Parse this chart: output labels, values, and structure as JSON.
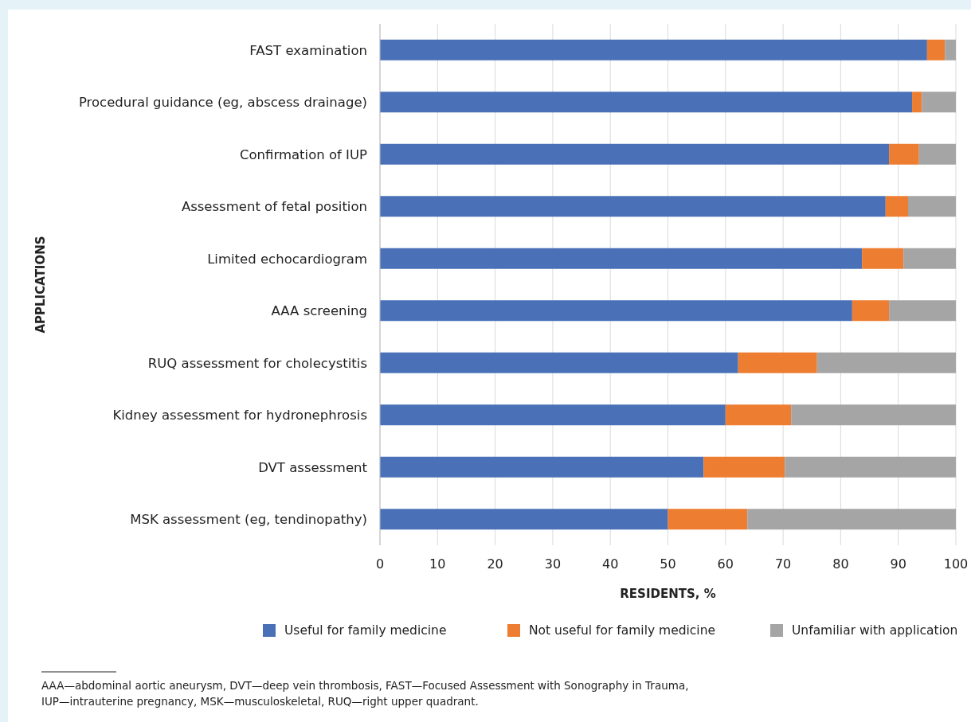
{
  "chart_data": {
    "type": "bar",
    "orientation": "horizontal",
    "stacked": true,
    "categories": [
      "FAST examination",
      "Procedural guidance (eg, abscess drainage)",
      "Confirmation of IUP",
      "Assessment of fetal position",
      "Limited echocardiogram",
      "AAA screening",
      "RUQ assessment for cholecystitis",
      "Kidney assessment for hydronephrosis",
      "DVT assessment",
      "MSK assessment (eg, tendinopathy)"
    ],
    "series": [
      {
        "name": "Useful for family medicine",
        "color": "#4a71b8",
        "values": [
          95.0,
          92.4,
          88.4,
          87.8,
          83.7,
          82.0,
          62.2,
          60.0,
          56.2,
          50.0
        ]
      },
      {
        "name": "Not useful for family medicine",
        "color": "#ed7d31",
        "values": [
          3.1,
          1.7,
          5.2,
          3.9,
          7.2,
          6.4,
          13.7,
          11.4,
          14.1,
          13.8
        ]
      },
      {
        "name": "Unfamiliar with application",
        "color": "#a5a5a5",
        "values": [
          1.9,
          5.9,
          6.4,
          8.3,
          9.1,
          11.6,
          24.1,
          28.6,
          29.7,
          36.2
        ]
      }
    ],
    "xlim": [
      0,
      100
    ],
    "xticks": [
      0,
      10,
      20,
      30,
      40,
      50,
      60,
      70,
      80,
      90,
      100
    ],
    "xlabel": "RESIDENTS, %",
    "ylabel": "APPLICATIONS",
    "grid": "x",
    "legend": "bottom",
    "annotations": [
      "AAA—abdominal aortic aneurysm, DVT—deep vein thrombosis, FAST—Focused Assessment with Sonography in Trauma, IUP—intrauterine pregnancy, MSK—musculoskeletal, RUQ—right upper quadrant."
    ]
  }
}
